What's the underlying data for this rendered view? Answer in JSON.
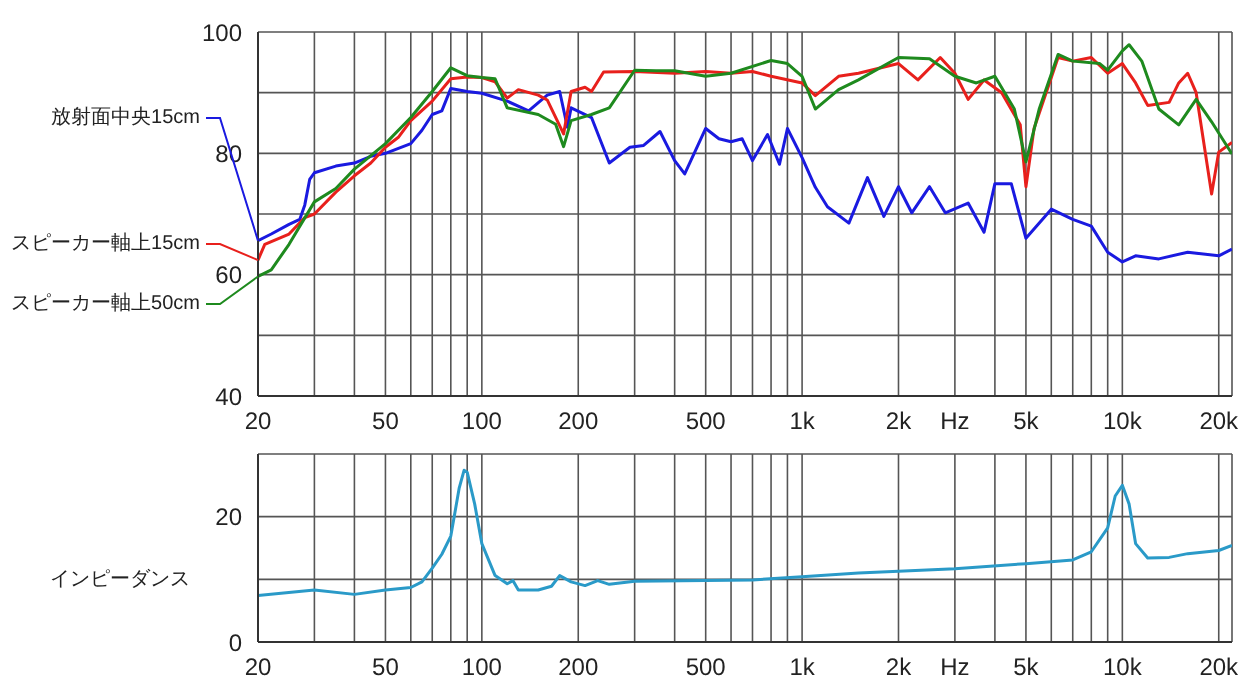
{
  "chart_data": [
    {
      "type": "line",
      "log": "x",
      "grid": true,
      "legend": "left",
      "xlim": [
        20,
        22000
      ],
      "xticks": [
        20,
        {
          "value": 30,
          "label": null
        },
        {
          "value": 40,
          "label": null
        },
        50,
        {
          "value": 60,
          "label": null
        },
        {
          "value": 70,
          "label": null
        },
        {
          "value": 80,
          "label": null
        },
        {
          "value": 90,
          "label": null
        },
        100,
        200,
        {
          "value": 300,
          "label": null
        },
        {
          "value": 400,
          "label": null
        },
        500,
        {
          "value": 600,
          "label": null
        },
        {
          "value": 700,
          "label": null
        },
        {
          "value": 800,
          "label": null
        },
        {
          "value": 900,
          "label": null
        },
        {
          "value": 1000,
          "label": "1k"
        },
        {
          "value": 2000,
          "label": "2k"
        },
        {
          "value": 3000,
          "label": "Hz"
        },
        {
          "value": 4000,
          "label": null
        },
        {
          "value": 5000,
          "label": "5k"
        },
        {
          "value": 6000,
          "label": null
        },
        {
          "value": 7000,
          "label": null
        },
        {
          "value": 8000,
          "label": null
        },
        {
          "value": 9000,
          "label": null
        },
        {
          "value": 10000,
          "label": "10k"
        },
        {
          "value": 20000,
          "label": "20k"
        }
      ],
      "ylim": [
        40,
        100
      ],
      "yticks": [
        40,
        {
          "value": 50,
          "label": null
        },
        60,
        {
          "value": 70,
          "label": null
        },
        80,
        {
          "value": 90,
          "label": null
        },
        100
      ],
      "series": [
        {
          "name": "放射面中央15cm",
          "color": "#1a1ae0",
          "x": [
            20,
            22,
            25,
            27,
            28,
            29,
            30,
            35,
            40,
            45,
            50,
            60,
            65,
            70,
            75,
            80,
            90,
            100,
            120,
            140,
            160,
            175,
            185,
            190,
            220,
            250,
            290,
            320,
            360,
            400,
            430,
            500,
            550,
            600,
            650,
            700,
            780,
            850,
            900,
            1000,
            1100,
            1200,
            1400,
            1600,
            1800,
            2000,
            2200,
            2500,
            2800,
            3300,
            3700,
            4000,
            4500,
            5000,
            6000,
            7000,
            8000,
            9000,
            10000,
            11000,
            13000,
            16000,
            20000,
            22000
          ],
          "values": [
            65.6,
            66.7,
            68.3,
            69.1,
            71.5,
            75.7,
            76.8,
            77.9,
            78.4,
            79.5,
            80,
            81.6,
            83.8,
            86.4,
            87,
            90.7,
            90.2,
            89.9,
            88.6,
            87,
            89.6,
            90.2,
            84.3,
            87.5,
            85.9,
            78.4,
            81,
            81.3,
            83.6,
            78.8,
            76.6,
            84.1,
            82.4,
            81.9,
            82.4,
            78.8,
            83.1,
            78.2,
            84.1,
            79.3,
            74.4,
            71.2,
            68.5,
            76,
            69.6,
            74.5,
            70.2,
            74.5,
            70.2,
            71.8,
            67,
            75,
            75,
            66,
            70.8,
            69.1,
            68,
            63.7,
            62.1,
            63.1,
            62.6,
            63.7,
            63.1,
            64.2
          ]
        },
        {
          "name": "スピーカー軸上15cm",
          "color": "#e8201c",
          "x": [
            20,
            21,
            25,
            28,
            30,
            35,
            40,
            45,
            50,
            55,
            60,
            70,
            80,
            90,
            100,
            110,
            120,
            130,
            150,
            160,
            180,
            190,
            210,
            220,
            240,
            300,
            400,
            500,
            600,
            700,
            800,
            1000,
            1100,
            1300,
            1500,
            2000,
            2300,
            2700,
            3000,
            3300,
            3700,
            4200,
            4800,
            5000,
            5300,
            6300,
            7000,
            8000,
            9000,
            10000,
            11000,
            12000,
            14000,
            15000,
            16000,
            17000,
            19000,
            20000,
            22000
          ],
          "values": [
            62.4,
            65,
            66.7,
            69.4,
            70,
            73.6,
            76.3,
            78.4,
            81,
            82.7,
            85.4,
            88.6,
            92.3,
            92.6,
            92.5,
            91.8,
            89.1,
            90.5,
            89.6,
            88.8,
            83.2,
            90.2,
            90.9,
            90.2,
            93.4,
            93.5,
            93.2,
            93.5,
            93.2,
            93.5,
            92.7,
            91.6,
            89.5,
            92.7,
            93.2,
            94.8,
            92.1,
            95.8,
            93.2,
            88.9,
            92.1,
            90,
            84.7,
            74.5,
            84.1,
            95.8,
            95.2,
            95.8,
            93.2,
            94.8,
            91.6,
            87.9,
            88.4,
            91.6,
            93.2,
            90,
            73.3,
            80.2,
            81.8
          ]
        },
        {
          "name": "スピーカー軸上50cm",
          "color": "#1e8a1e",
          "x": [
            20,
            22,
            25,
            30,
            35,
            40,
            50,
            60,
            70,
            80,
            90,
            100,
            110,
            120,
            150,
            170,
            180,
            190,
            220,
            250,
            300,
            350,
            400,
            500,
            600,
            800,
            900,
            1000,
            1100,
            1300,
            1500,
            2000,
            2500,
            3000,
            3500,
            4000,
            4600,
            5000,
            5500,
            6300,
            7000,
            8500,
            9000,
            10000,
            10500,
            11500,
            13000,
            15000,
            17000,
            19000,
            22000
          ],
          "values": [
            59.7,
            60.8,
            65,
            72,
            74.2,
            77.4,
            81.6,
            85.9,
            90.2,
            94.1,
            92.8,
            92.5,
            92.3,
            87.5,
            86.4,
            84.8,
            81.1,
            85.4,
            86.4,
            87.5,
            93.7,
            93.6,
            93.6,
            92.7,
            93.2,
            95.3,
            94.8,
            92.7,
            87.3,
            90.5,
            92.1,
            95.8,
            95.6,
            92.7,
            91.6,
            92.7,
            87.3,
            78.6,
            87.3,
            96.3,
            95.2,
            94.8,
            93.7,
            96.9,
            97.9,
            95.2,
            87.3,
            84.7,
            88.9,
            85.2,
            79.9
          ]
        }
      ]
    },
    {
      "type": "line",
      "log": "x",
      "grid": true,
      "ylabel": "インピーダンス",
      "xlim": [
        20,
        22000
      ],
      "xticks": [
        20,
        {
          "value": 30,
          "label": null
        },
        {
          "value": 40,
          "label": null
        },
        50,
        {
          "value": 60,
          "label": null
        },
        {
          "value": 70,
          "label": null
        },
        {
          "value": 80,
          "label": null
        },
        {
          "value": 90,
          "label": null
        },
        100,
        200,
        {
          "value": 300,
          "label": null
        },
        {
          "value": 400,
          "label": null
        },
        500,
        {
          "value": 600,
          "label": null
        },
        {
          "value": 700,
          "label": null
        },
        {
          "value": 800,
          "label": null
        },
        {
          "value": 900,
          "label": null
        },
        {
          "value": 1000,
          "label": "1k"
        },
        {
          "value": 2000,
          "label": "2k"
        },
        {
          "value": 3000,
          "label": "Hz"
        },
        {
          "value": 4000,
          "label": null
        },
        {
          "value": 5000,
          "label": "5k"
        },
        {
          "value": 6000,
          "label": null
        },
        {
          "value": 7000,
          "label": null
        },
        {
          "value": 8000,
          "label": null
        },
        {
          "value": 9000,
          "label": null
        },
        {
          "value": 10000,
          "label": "10k"
        },
        {
          "value": 20000,
          "label": "20k"
        }
      ],
      "ylim": [
        0,
        30
      ],
      "yticks": [
        0,
        {
          "value": 10,
          "label": null
        },
        20
      ],
      "series": [
        {
          "color": "#2a9ac8",
          "x": [
            20,
            30,
            40,
            50,
            60,
            65,
            70,
            75,
            80,
            85,
            88,
            90,
            95,
            100,
            110,
            120,
            125,
            130,
            150,
            165,
            175,
            190,
            210,
            230,
            250,
            300,
            500,
            700,
            1000,
            1500,
            2000,
            3000,
            5000,
            7000,
            8000,
            9000,
            9500,
            10000,
            10500,
            11000,
            12000,
            14000,
            16000,
            20000,
            22000
          ],
          "values": [
            7.4,
            8.3,
            7.6,
            8.3,
            8.7,
            9.6,
            11.8,
            14,
            16.9,
            24.6,
            27.4,
            27.1,
            22,
            15.7,
            10.6,
            9.3,
            9.8,
            8.3,
            8.3,
            8.9,
            10.6,
            9.6,
            9,
            9.8,
            9.2,
            9.7,
            9.8,
            9.9,
            10.4,
            11,
            11.3,
            11.7,
            12.5,
            13.1,
            14.4,
            18.2,
            23.3,
            25,
            22,
            15.7,
            13.4,
            13.5,
            14.1,
            14.6,
            15.4
          ]
        }
      ]
    }
  ]
}
